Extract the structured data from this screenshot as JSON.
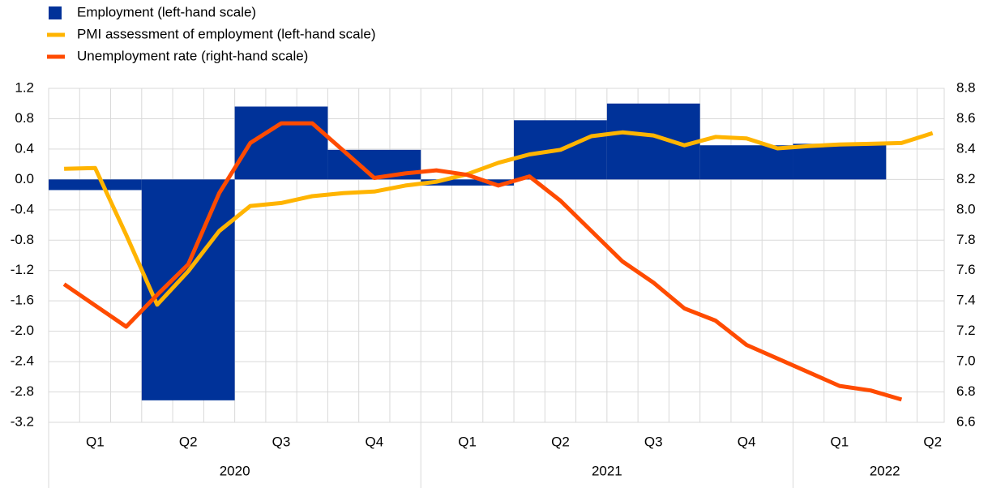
{
  "chart_data": {
    "type": "combo",
    "quarters": [
      "Q1",
      "Q2",
      "Q3",
      "Q4",
      "Q1",
      "Q2",
      "Q3",
      "Q4",
      "Q1",
      "Q2"
    ],
    "years": [
      "2020",
      "2021",
      "2022"
    ],
    "months": [
      null,
      null,
      null,
      null,
      null,
      null,
      null,
      null,
      null,
      null,
      null,
      null,
      null,
      null,
      null,
      null,
      null,
      null,
      null,
      null,
      null,
      null,
      null,
      null,
      null,
      null,
      null,
      null,
      null
    ],
    "series": [
      {
        "name": "Employment (left-hand scale)",
        "type": "bar",
        "color": "#003299",
        "axis": "y",
        "values": [
          -0.14,
          -2.91,
          0.96,
          0.39,
          -0.08,
          0.78,
          1.0,
          0.45,
          0.47,
          null
        ]
      },
      {
        "name": "PMI assessment of employment (left-hand scale)",
        "type": "line",
        "color": "#FFB400",
        "axis": "y",
        "values": [
          0.14,
          0.15,
          -0.73,
          -1.65,
          -1.21,
          -0.68,
          -0.35,
          -0.31,
          -0.22,
          -0.18,
          -0.16,
          -0.08,
          -0.03,
          0.07,
          0.22,
          0.33,
          0.39,
          0.57,
          0.62,
          0.58,
          0.45,
          0.56,
          0.54,
          0.41,
          0.44,
          0.46,
          0.47,
          0.48,
          0.61
        ]
      },
      {
        "name": "Unemployment rate (right-hand scale)",
        "type": "line",
        "color": "#FF4B00",
        "axis": "y2",
        "values": [
          7.51,
          7.37,
          7.23,
          7.44,
          7.64,
          8.11,
          8.44,
          8.57,
          8.57,
          8.39,
          8.21,
          8.24,
          8.26,
          8.23,
          8.16,
          8.22,
          8.06,
          7.86,
          7.66,
          7.52,
          7.35,
          7.27,
          7.11,
          7.02,
          6.93,
          6.84,
          6.81,
          6.75,
          null
        ]
      }
    ],
    "ylim": [
      -3.2,
      1.2
    ],
    "yticks": [
      -3.2,
      -2.8,
      -2.4,
      {
        "value": -2,
        "label": "-2.0"
      },
      -1.6,
      -1.2,
      -0.8,
      -0.4,
      {
        "value": 0,
        "label": "0.0"
      },
      0.4,
      0.8,
      1.2
    ],
    "y2lim": [
      6.6,
      8.8
    ],
    "y2ticks": [
      6.6,
      6.8,
      {
        "value": 7,
        "label": "7.0"
      },
      7.2,
      7.4,
      7.6,
      7.8,
      {
        "value": 8,
        "label": "8.0"
      },
      8.2,
      8.4,
      8.6,
      8.8
    ],
    "grid": true,
    "legend": "top-left"
  }
}
